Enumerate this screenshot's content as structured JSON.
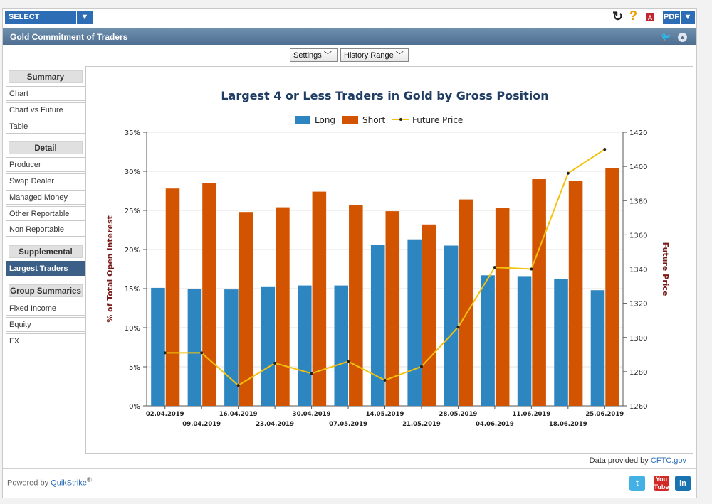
{
  "toolbar": {
    "select_product": "SELECT PRODUCT",
    "pdf_label": "PDF",
    "refresh_icon": "refresh-icon",
    "help_icon": "help-icon"
  },
  "page_title": "Gold Commitment of Traders",
  "controls": {
    "settings": "Settings",
    "history_range": "History Range"
  },
  "sidebar": {
    "groups": [
      {
        "heading": "Summary",
        "items": [
          "Chart",
          "Chart vs Future",
          "Table"
        ]
      },
      {
        "heading": "Detail",
        "items": [
          "Producer",
          "Swap Dealer",
          "Managed Money",
          "Other Reportable",
          "Non Reportable"
        ]
      },
      {
        "heading": "Supplemental",
        "items": [
          "Largest Traders"
        ]
      },
      {
        "heading": "Group Summaries",
        "items": [
          "Fixed Income",
          "Equity",
          "FX"
        ]
      }
    ],
    "active_item": "Largest Traders"
  },
  "footer": {
    "data_credit_prefix": "Data provided by",
    "data_credit_link": "CFTC.gov",
    "powered_prefix": "Powered by",
    "powered_link": "QuikStrike",
    "powered_mark": "®"
  },
  "colors": {
    "long": "#2e86c1",
    "short": "#d35400",
    "future": "#f4c20d",
    "axis_title": "#7a1b1b",
    "chart_title": "#1f3d63"
  },
  "chart_data": {
    "type": "bar",
    "title": "Largest 4 or Less Traders in Gold by Gross Position",
    "ylabel": "% of Total Open Interest",
    "y2label": "Future Price",
    "categories": [
      "02.04.2019",
      "09.04.2019",
      "16.04.2019",
      "23.04.2019",
      "30.04.2019",
      "07.05.2019",
      "14.05.2019",
      "21.05.2019",
      "28.05.2019",
      "04.06.2019",
      "11.06.2019",
      "18.06.2019",
      "25.06.2019"
    ],
    "series": [
      {
        "name": "Long",
        "type": "bar",
        "axis": "left",
        "values": [
          15.1,
          15.0,
          14.9,
          15.2,
          15.4,
          15.4,
          20.6,
          21.3,
          20.5,
          16.7,
          16.6,
          16.2,
          14.8
        ]
      },
      {
        "name": "Short",
        "type": "bar",
        "axis": "left",
        "values": [
          27.8,
          28.5,
          24.8,
          25.4,
          27.4,
          25.7,
          24.9,
          23.2,
          26.4,
          25.3,
          29.0,
          28.8,
          30.4
        ]
      },
      {
        "name": "Future Price",
        "type": "line",
        "axis": "right",
        "values": [
          1291,
          1291,
          1272,
          1285,
          1279,
          1286,
          1275,
          1283,
          1306,
          1341,
          1340,
          1396,
          1410
        ]
      }
    ],
    "ylim": [
      0,
      35
    ],
    "yticks": [
      "0%",
      "5%",
      "10%",
      "15%",
      "20%",
      "25%",
      "30%",
      "35%"
    ],
    "y2lim": [
      1260,
      1420
    ],
    "y2ticks": [
      "1260",
      "1280",
      "1300",
      "1320",
      "1340",
      "1360",
      "1380",
      "1400",
      "1420"
    ],
    "legend": "top-center",
    "grid": "horizontal"
  }
}
